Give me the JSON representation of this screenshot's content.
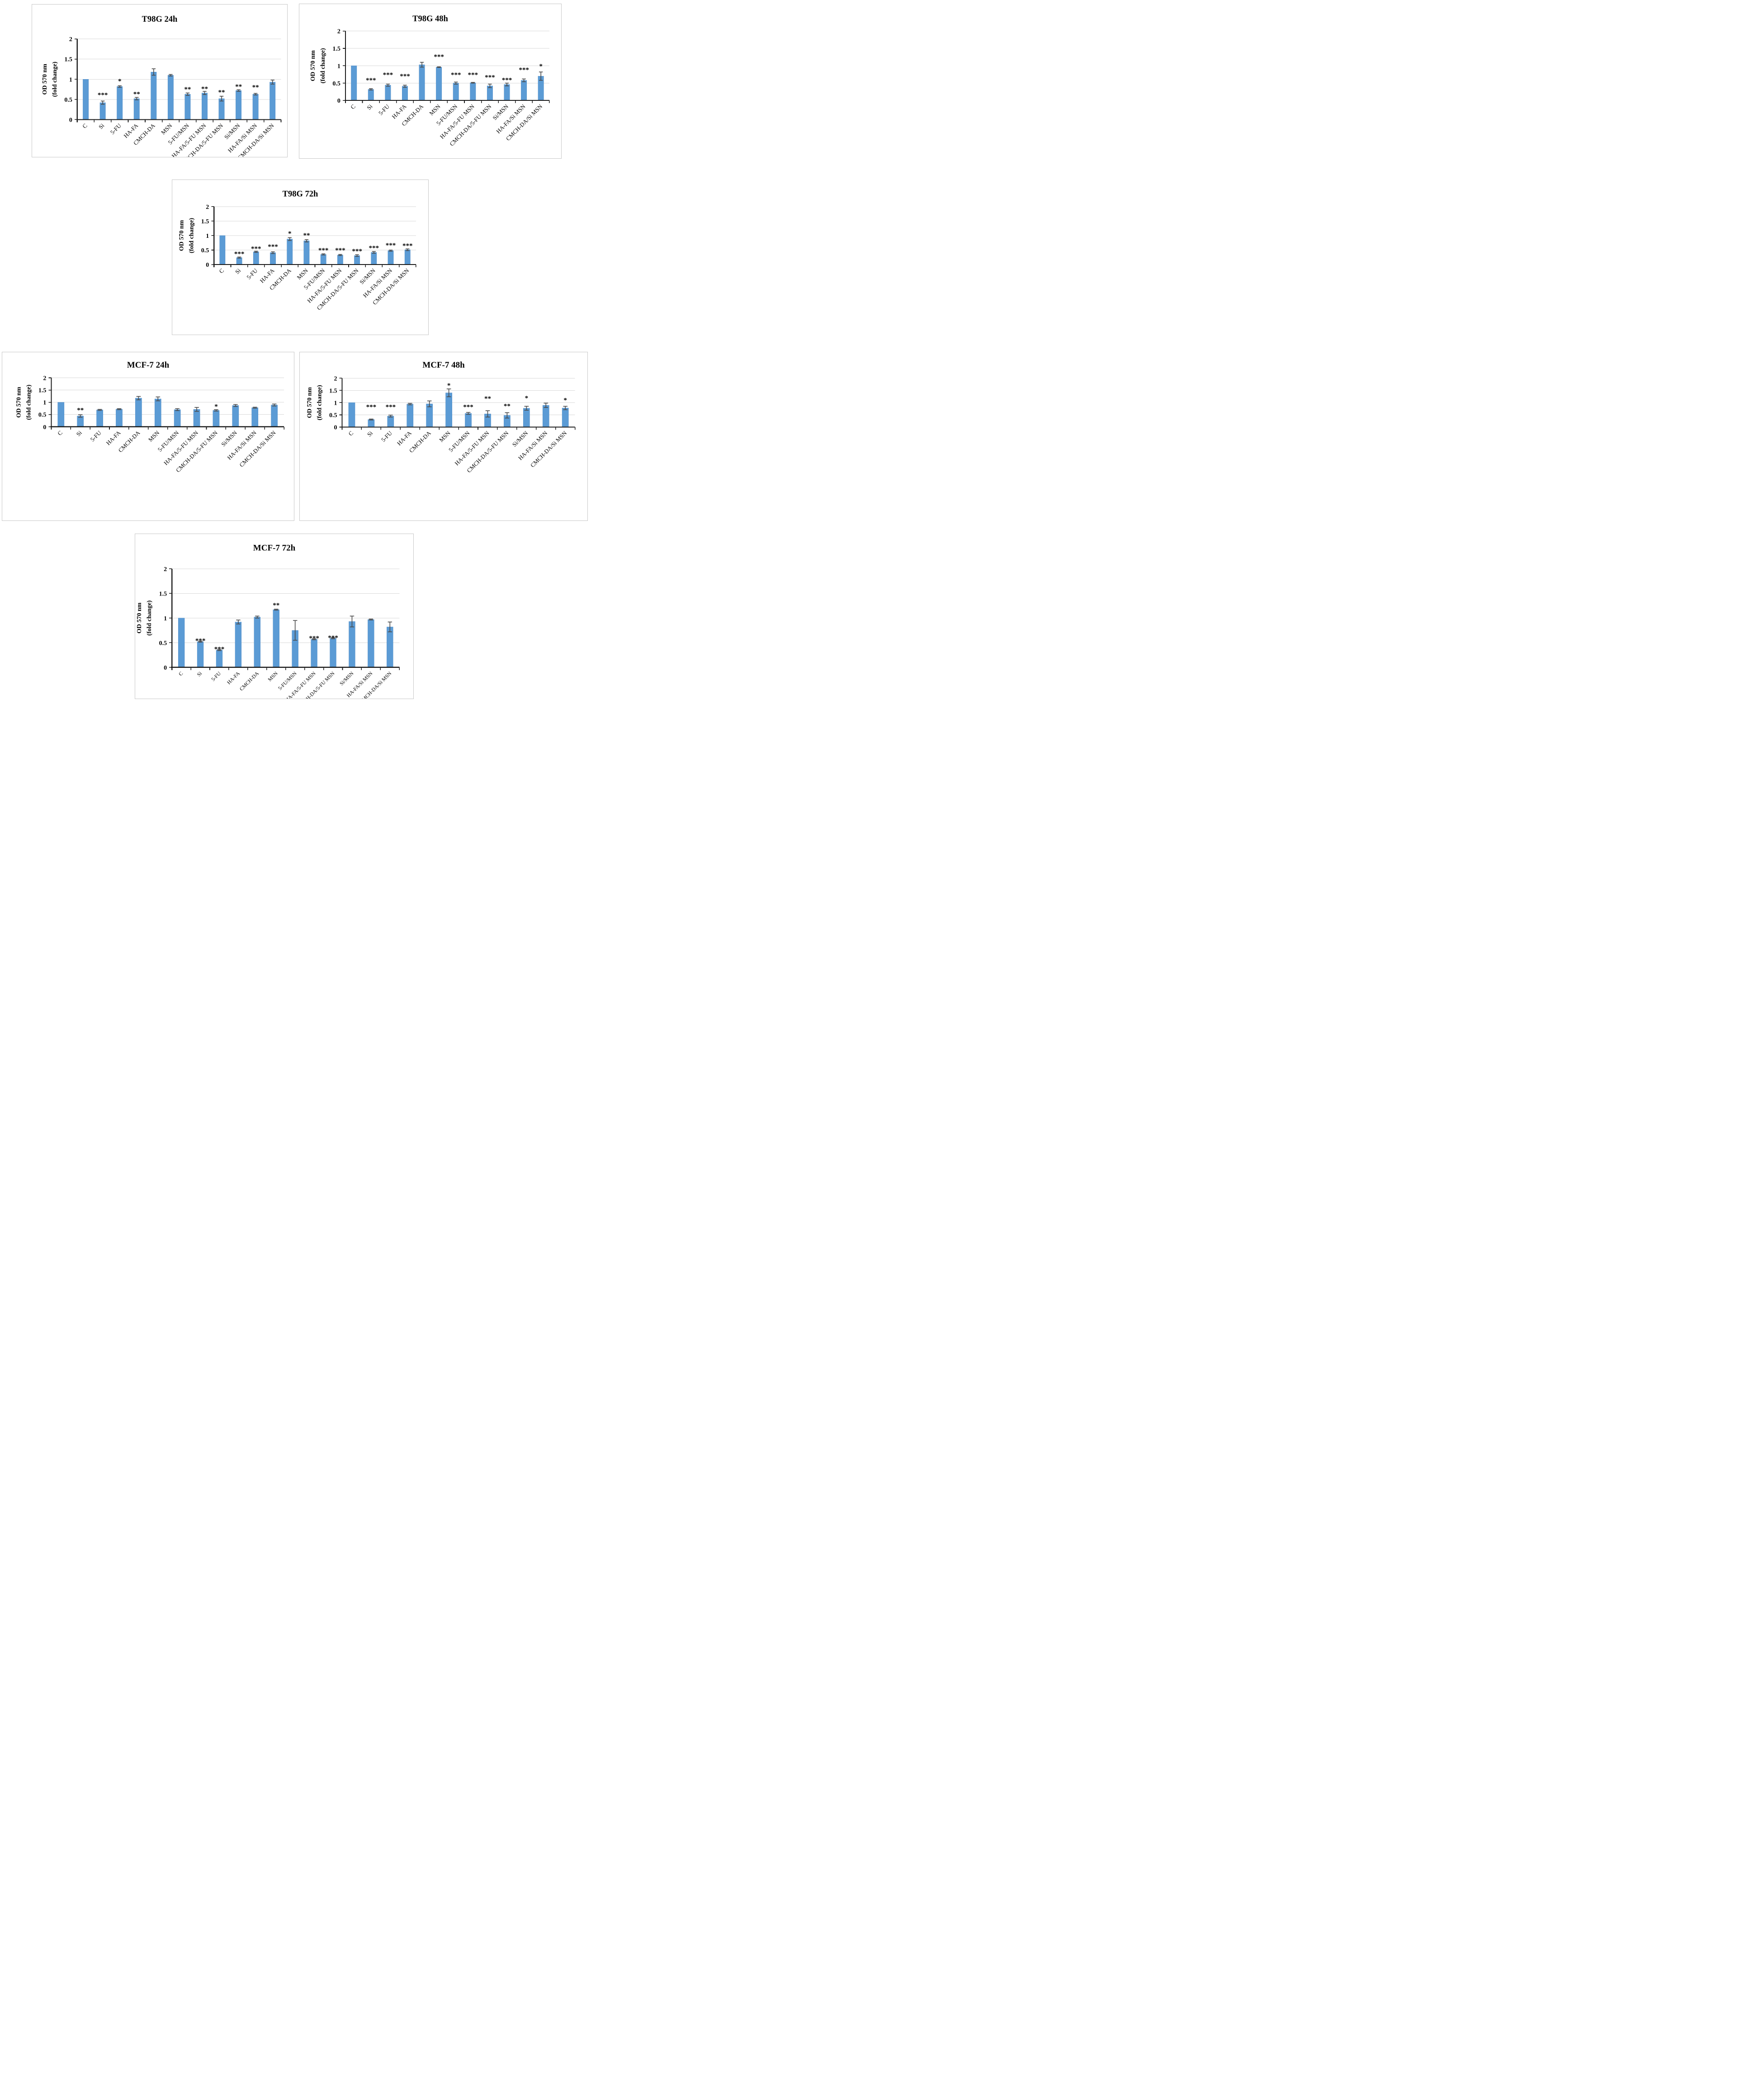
{
  "colors": {
    "bar": "#5b9bd5",
    "bar_edge": "#4d89c3",
    "error_bar": "#4a4a4a",
    "grid": "#d9d9d9",
    "axis": "#1c1c1c",
    "panel_border": "#c8c8c8",
    "text": "#000000"
  },
  "axis": {
    "ylim": [
      0,
      2
    ],
    "yticks": [
      0,
      0.5,
      1,
      1.5,
      2
    ],
    "ytick_labels": [
      "0",
      "0.5",
      "1",
      "1.5",
      "2"
    ],
    "ylabel_lines": [
      "OD 570 nm",
      "(fold change)"
    ],
    "grid": true,
    "legend": "none"
  },
  "chart_data": [
    {
      "id": "t98g-24h",
      "type": "bar",
      "title": "T98G 24h",
      "xlabel": "",
      "ylabel": "OD 570 nm (fold change)",
      "ylim": [
        0,
        2
      ],
      "categories": [
        "C",
        "Si",
        "5-FU",
        "HA-FA",
        "CMCH-DA",
        "MSN",
        "5-FU/MSN",
        "HA-FA/5-FU MSN",
        "CMCH-DA/5-FU MSN",
        "Si/MSN",
        "HA-FA/Si MSN",
        "CMCH-DA/Si MSN"
      ],
      "values": [
        1.0,
        0.42,
        0.82,
        0.52,
        1.18,
        1.1,
        0.63,
        0.66,
        0.52,
        0.72,
        0.63,
        0.93
      ],
      "errors": [
        0,
        0.04,
        0.02,
        0.03,
        0.08,
        0.02,
        0.03,
        0.04,
        0.06,
        0.02,
        0.02,
        0.05
      ],
      "stars": [
        "",
        "***",
        "*",
        "**",
        "",
        "",
        "**",
        "**",
        "**",
        "**",
        "**",
        ""
      ],
      "star_y": [
        null,
        0.56,
        0.9,
        0.58,
        null,
        null,
        0.7,
        0.71,
        0.63,
        0.77,
        0.75,
        null
      ]
    },
    {
      "id": "t98g-48h",
      "type": "bar",
      "title": "T98G 48h",
      "xlabel": "",
      "ylabel": "OD 570 nm (fold change)",
      "ylim": [
        0,
        2
      ],
      "categories": [
        "C",
        "Si",
        "5-FU",
        "HA-FA",
        "CMCH-DA",
        "MSN",
        "5-FU/MSN",
        "HA-FA/5-FU MSN",
        "CMCH-DA/5-FU MSN",
        "Si/MSN",
        "HA-FA/Si MSN",
        "CMCH-DA/Si MSN"
      ],
      "values": [
        1.0,
        0.32,
        0.44,
        0.41,
        1.03,
        0.96,
        0.5,
        0.51,
        0.42,
        0.46,
        0.58,
        0.7
      ],
      "errors": [
        0,
        0.02,
        0.03,
        0.03,
        0.07,
        0.01,
        0.03,
        0.01,
        0.05,
        0.04,
        0.04,
        0.12
      ],
      "stars": [
        "",
        "***",
        "***",
        "***",
        "",
        "***",
        "***",
        "***",
        "***",
        "***",
        "***",
        "*"
      ],
      "star_y": [
        null,
        0.52,
        0.68,
        0.64,
        null,
        1.2,
        0.68,
        0.68,
        0.61,
        0.53,
        0.82,
        0.93
      ]
    },
    {
      "id": "t98g-72h",
      "type": "bar",
      "title": "T98G 72h",
      "xlabel": "",
      "ylabel": "OD 570 nm (fold change)",
      "ylim": [
        0,
        2
      ],
      "categories": [
        "C",
        "Si",
        "5-FU",
        "HA-FA",
        "CMCH-DA",
        "MSN",
        "5-FU/MSN",
        "HA-FA/5-FU MSN",
        "CMCH-DA/5-FU MSN",
        "Si/MSN",
        "HA-FA/Si MSN",
        "CMCH-DA/Si MSN"
      ],
      "values": [
        1.0,
        0.24,
        0.44,
        0.41,
        0.88,
        0.82,
        0.35,
        0.33,
        0.31,
        0.42,
        0.48,
        0.51
      ],
      "errors": [
        0,
        0.02,
        0.02,
        0.03,
        0.05,
        0.04,
        0.02,
        0.02,
        0.03,
        0.03,
        0.02,
        0.03
      ],
      "stars": [
        "",
        "***",
        "***",
        "***",
        "*",
        "**",
        "***",
        "***",
        "***",
        "***",
        "***",
        "***"
      ],
      "star_y": [
        null,
        0.3,
        0.48,
        0.55,
        1.0,
        0.94,
        0.42,
        0.42,
        0.39,
        0.5,
        0.59,
        0.58
      ]
    },
    {
      "id": "mcf7-24h",
      "type": "bar",
      "title": "MCF-7 24h",
      "xlabel": "",
      "ylabel": "OD 570 nm (fold change)",
      "ylim": [
        0,
        2
      ],
      "categories": [
        "C",
        "Si",
        "5-FU",
        "HA-FA",
        "CMCH-DA",
        "MSN",
        "5-FU/MSN",
        "HA-FA/5-FU MSN",
        "CMCH-DA/5-FU MSN",
        "Si/MSN",
        "HA-FA/Si MSN",
        "CMCH-DA/Si MSN"
      ],
      "values": [
        1.0,
        0.44,
        0.69,
        0.72,
        1.17,
        1.14,
        0.7,
        0.71,
        0.67,
        0.87,
        0.78,
        0.89
      ],
      "errors": [
        0,
        0.05,
        0.02,
        0.02,
        0.07,
        0.08,
        0.04,
        0.08,
        0.03,
        0.04,
        0.02,
        0.04
      ],
      "stars": [
        "",
        "**",
        "",
        "",
        "",
        "",
        "",
        "",
        "*",
        "",
        "",
        ""
      ],
      "star_y": [
        null,
        0.6,
        null,
        null,
        null,
        null,
        null,
        null,
        0.74,
        null,
        null,
        null
      ]
    },
    {
      "id": "mcf7-48h",
      "type": "bar",
      "title": "MCF-7 48h",
      "xlabel": "",
      "ylabel": "OD 570 nm (fold change)",
      "ylim": [
        0,
        2
      ],
      "categories": [
        "C",
        "Si",
        "5-FU",
        "HA-FA",
        "CMCH-DA",
        "MSN",
        "5-FU/MSN",
        "HA-FA/5-FU MSN",
        "CMCH-DA/5-FU MSN",
        "Si/MSN",
        "HA-FA/Si MSN",
        "CMCH-DA/Si MSN"
      ],
      "values": [
        1.0,
        0.31,
        0.45,
        0.94,
        0.95,
        1.4,
        0.56,
        0.54,
        0.48,
        0.77,
        0.89,
        0.78
      ],
      "errors": [
        0,
        0.02,
        0.04,
        0.03,
        0.12,
        0.16,
        0.04,
        0.13,
        0.11,
        0.08,
        0.09,
        0.07
      ],
      "stars": [
        "",
        "***",
        "***",
        "",
        "",
        "*",
        "***",
        "**",
        "**",
        "*",
        "",
        "*"
      ],
      "star_y": [
        null,
        0.74,
        0.74,
        null,
        null,
        1.62,
        0.74,
        1.08,
        0.78,
        1.1,
        null,
        1.02
      ]
    },
    {
      "id": "mcf7-72h",
      "type": "bar",
      "title": "MCF-7 72h",
      "xlabel": "",
      "ylabel": "OD 570 nm (fold change)",
      "ylim": [
        0,
        2
      ],
      "categories": [
        "C",
        "Si",
        "5-FU",
        "HA-FA",
        "CMCH-DA",
        "MSN",
        "5-FU/MSN",
        "HA-FA/5-FU MSN",
        "CMCH-DA/5-FU MSN",
        "Si/MSN",
        "HA-FA/Si MSN",
        "CMCH-DA/Si MSN"
      ],
      "values": [
        1.0,
        0.52,
        0.35,
        0.92,
        1.02,
        1.17,
        0.75,
        0.57,
        0.59,
        0.93,
        0.97,
        0.82
      ],
      "errors": [
        0,
        0.01,
        0.01,
        0.04,
        0.02,
        0.01,
        0.2,
        0.01,
        0.01,
        0.11,
        0.01,
        0.1
      ],
      "stars": [
        "",
        "***",
        "***",
        "",
        "",
        "**",
        "",
        "***",
        "***",
        "",
        "",
        ""
      ],
      "star_y": [
        null,
        0.5,
        0.33,
        null,
        null,
        1.22,
        null,
        0.55,
        0.56,
        null,
        null,
        null
      ]
    }
  ]
}
